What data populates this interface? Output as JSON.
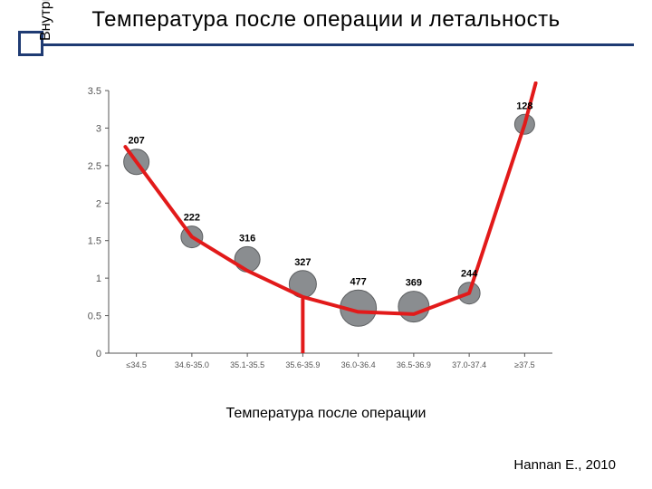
{
  "title": "Температура после операции и летальность",
  "y_axis_label": "Внутригоспитальная летальность",
  "x_axis_label": "Температура после операции",
  "citation": "Hannan E., 2010",
  "chart": {
    "type": "scatter-with-curve",
    "background_color": "#ffffff",
    "axis_color": "#555555",
    "curve_color": "#e21a1a",
    "curve_width": 4,
    "marker_fill": "#8a8d90",
    "marker_stroke": "#5d5f61",
    "point_label_color": "#000000",
    "point_label_fontsize": 11,
    "ylim": [
      0,
      3.5
    ],
    "ytick_step": 0.5,
    "yticks": [
      "0",
      "0.5",
      "1",
      "1.5",
      "2",
      "2.5",
      "3",
      "3.5"
    ],
    "x_categories": [
      "≤34.5",
      "34.6-35.0",
      "35.1-35.5",
      "35.6-35.9",
      "36.0-36.4",
      "36.5-36.9",
      "37.0-37.4",
      "≥37.5"
    ],
    "points": [
      {
        "x_index": 0,
        "y": 2.55,
        "radius": 14,
        "label": "207"
      },
      {
        "x_index": 1,
        "y": 1.55,
        "radius": 12,
        "label": "222"
      },
      {
        "x_index": 2,
        "y": 1.25,
        "radius": 14,
        "label": "316"
      },
      {
        "x_index": 3,
        "y": 0.92,
        "radius": 15,
        "label": "327"
      },
      {
        "x_index": 4,
        "y": 0.6,
        "radius": 20,
        "label": "477"
      },
      {
        "x_index": 5,
        "y": 0.62,
        "radius": 17,
        "label": "369"
      },
      {
        "x_index": 6,
        "y": 0.8,
        "radius": 12,
        "label": "244"
      },
      {
        "x_index": 7,
        "y": 3.05,
        "radius": 11,
        "label": "128"
      }
    ],
    "curve": [
      {
        "x": -0.2,
        "y": 2.75
      },
      {
        "x": 0.0,
        "y": 2.55
      },
      {
        "x": 1.0,
        "y": 1.55
      },
      {
        "x": 2.0,
        "y": 1.1
      },
      {
        "x": 3.0,
        "y": 0.75
      },
      {
        "x": 4.0,
        "y": 0.55
      },
      {
        "x": 5.0,
        "y": 0.52
      },
      {
        "x": 6.0,
        "y": 0.8
      },
      {
        "x": 7.0,
        "y": 3.05
      },
      {
        "x": 7.2,
        "y": 3.6
      }
    ],
    "indicator_line": {
      "x_index": 3,
      "from_y": 1.0,
      "to_y": 0.0
    }
  }
}
